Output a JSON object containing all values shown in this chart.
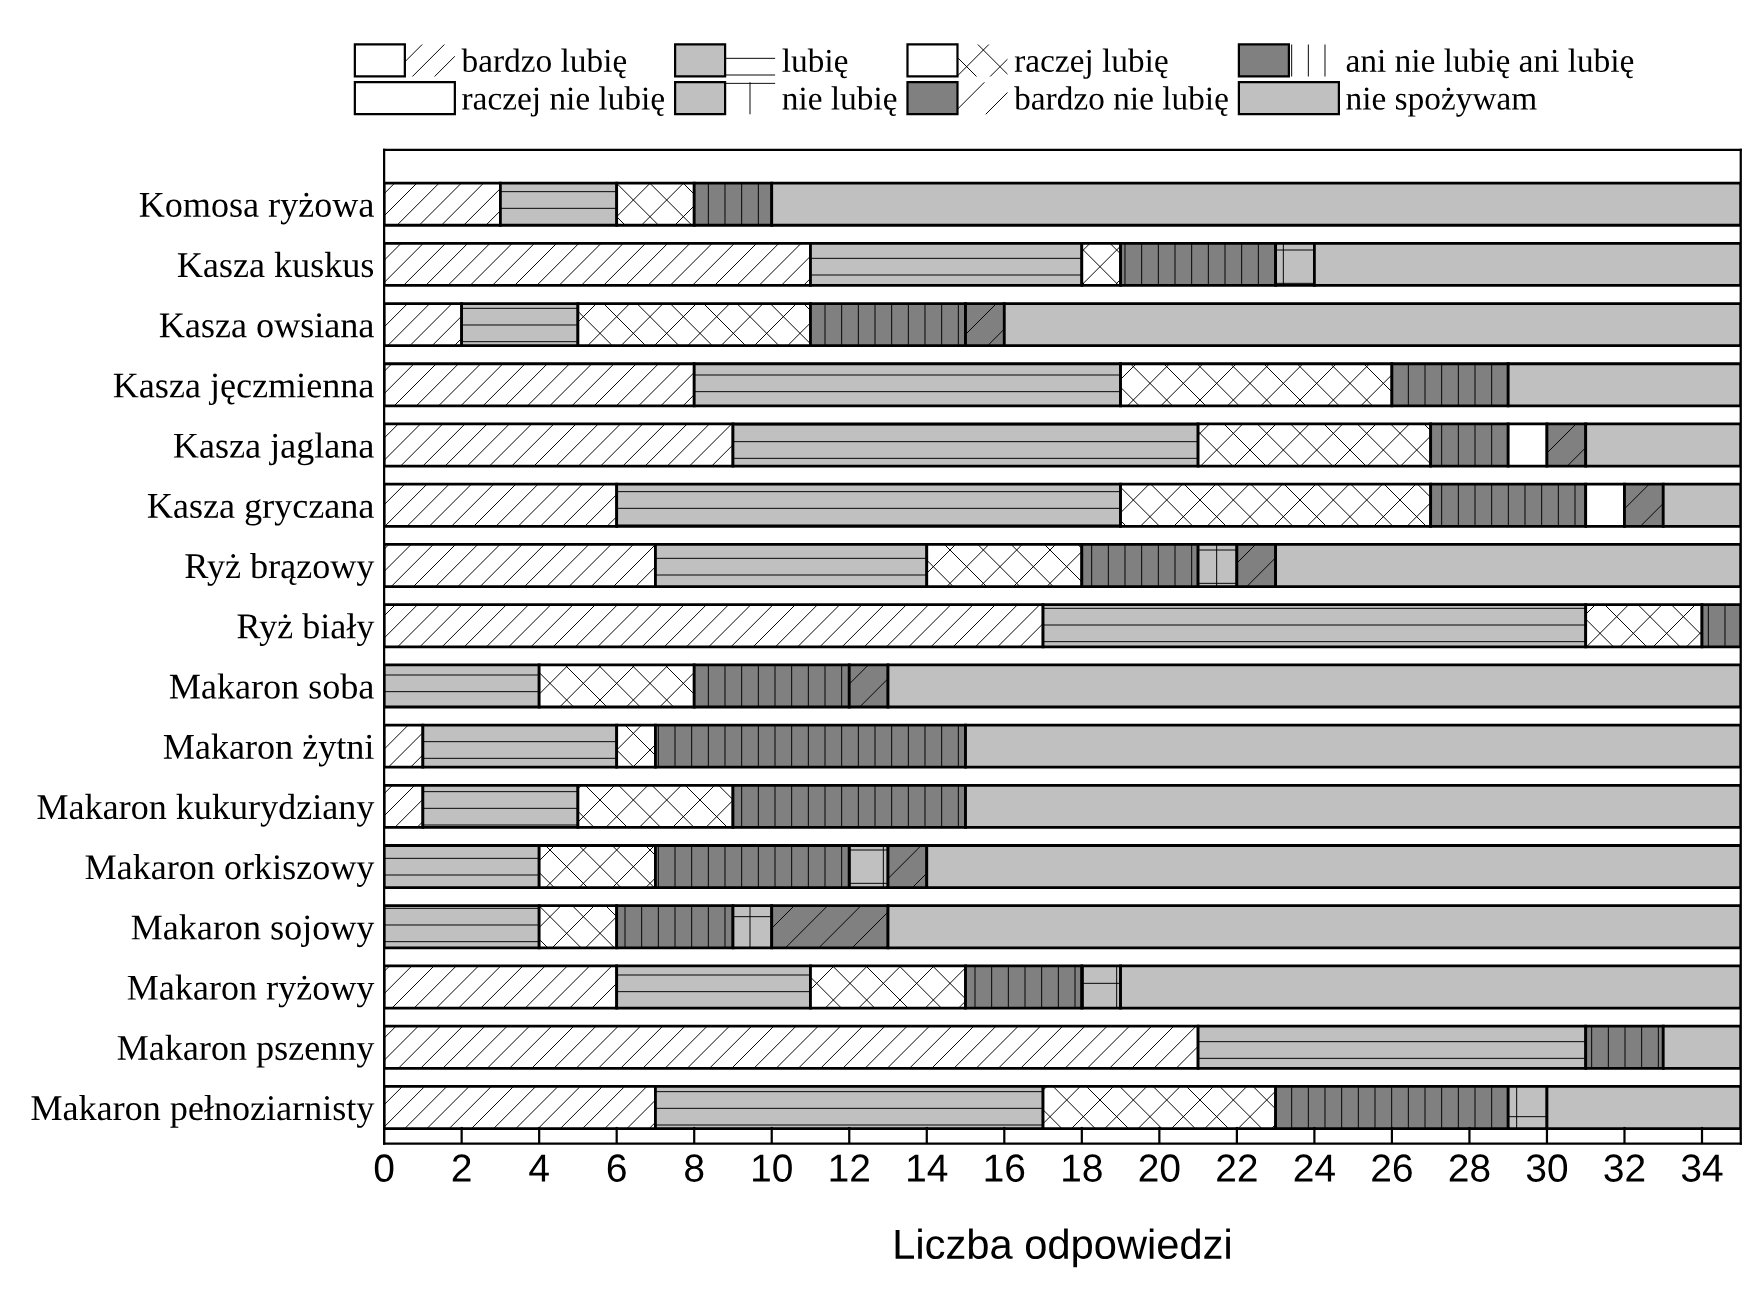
{
  "chart_data": {
    "type": "bar",
    "orientation": "horizontal",
    "stacked": true,
    "xlabel": "Liczba odpowiedzi",
    "categories": [
      "Komosa ryżowa",
      "Kasza kuskus",
      "Kasza owsiana",
      "Kasza jęczmienna",
      "Kasza jaglana",
      "Kasza gryczana",
      "Ryż brązowy",
      "Ryż biały",
      "Makaron soba",
      "Makaron żytni",
      "Makaron kukurydziany",
      "Makaron orkiszowy",
      "Makaron sojowy",
      "Makaron ryżowy",
      "Makaron pszenny",
      "Makaron pełnoziarnisty"
    ],
    "series": [
      {
        "name": "bardzo lubię",
        "color": "#ffffff",
        "values": [
          3,
          11,
          2,
          8,
          9,
          6,
          7,
          17,
          0,
          1,
          1,
          0,
          0,
          6,
          21,
          7
        ]
      },
      {
        "name": "lubię",
        "color": "#c0c0c0",
        "values": [
          3,
          7,
          3,
          11,
          12,
          13,
          7,
          14,
          4,
          5,
          4,
          4,
          4,
          5,
          10,
          10
        ]
      },
      {
        "name": "raczej lubię",
        "color": "#ffffff",
        "values": [
          2,
          1,
          6,
          7,
          6,
          8,
          4,
          3,
          4,
          1,
          4,
          3,
          2,
          4,
          0,
          6
        ]
      },
      {
        "name": "ani nie lubię ani lubię",
        "color": "#808080",
        "values": [
          2,
          4,
          4,
          3,
          2,
          4,
          3,
          1,
          4,
          8,
          6,
          5,
          3,
          3,
          2,
          6
        ]
      },
      {
        "name": "raczej nie lubię",
        "color": "#ffffff",
        "values": [
          0,
          0,
          0,
          0,
          1,
          1,
          0,
          0,
          0,
          0,
          0,
          0,
          0,
          0,
          0,
          0
        ]
      },
      {
        "name": "nie lubię",
        "color": "#c0c0c0",
        "values": [
          0,
          1,
          0,
          0,
          0,
          0,
          1,
          0,
          0,
          0,
          0,
          1,
          1,
          1,
          0,
          1
        ]
      },
      {
        "name": "bardzo nie lubię",
        "color": "#808080",
        "values": [
          0,
          0,
          1,
          0,
          1,
          1,
          1,
          0,
          1,
          0,
          0,
          1,
          3,
          0,
          0,
          0
        ]
      },
      {
        "name": "nie spożywam",
        "color": "#c0c0c0",
        "values": [
          25,
          11,
          19,
          6,
          4,
          2,
          12,
          0,
          22,
          20,
          20,
          21,
          22,
          16,
          2,
          5
        ]
      }
    ],
    "xlim": [
      0,
      35
    ],
    "xticks": [
      0,
      2,
      4,
      6,
      8,
      10,
      12,
      14,
      16,
      18,
      20,
      22,
      24,
      26,
      28,
      30,
      32,
      34
    ],
    "grid": false,
    "legend": "top"
  }
}
